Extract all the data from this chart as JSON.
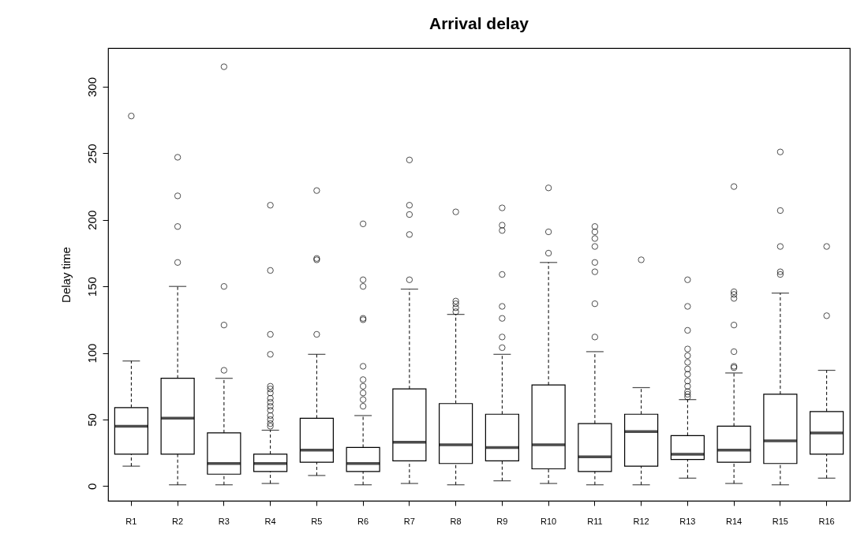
{
  "chart_data": {
    "type": "box",
    "title": "Arrival delay",
    "ylabel": "Delay time",
    "categories": [
      "R1",
      "R2",
      "R3",
      "R4",
      "R5",
      "R6",
      "R7",
      "R8",
      "R9",
      "R10",
      "R11",
      "R12",
      "R13",
      "R14",
      "R15",
      "R16"
    ],
    "boxes": [
      {
        "low": 15,
        "q1": 24,
        "median": 45,
        "q3": 59,
        "high": 94,
        "outliers": [
          278
        ]
      },
      {
        "low": 1,
        "q1": 24,
        "median": 51,
        "q3": 81,
        "high": 150,
        "outliers": [
          168,
          195,
          218,
          247
        ]
      },
      {
        "low": 1,
        "q1": 9,
        "median": 17,
        "q3": 40,
        "high": 81,
        "outliers": [
          87,
          121,
          150,
          315
        ]
      },
      {
        "low": 2,
        "q1": 11,
        "median": 17,
        "q3": 24,
        "high": 42,
        "outliers": [
          45,
          47,
          50,
          53,
          57,
          60,
          63,
          66,
          70,
          73,
          75,
          99,
          114,
          162,
          211
        ]
      },
      {
        "low": 8,
        "q1": 18,
        "median": 27,
        "q3": 51,
        "high": 99,
        "outliers": [
          114,
          170,
          171,
          222
        ]
      },
      {
        "low": 1,
        "q1": 11,
        "median": 17,
        "q3": 29,
        "high": 53,
        "outliers": [
          60,
          65,
          70,
          75,
          80,
          90,
          125,
          126,
          150,
          155,
          197
        ]
      },
      {
        "low": 2,
        "q1": 19,
        "median": 33,
        "q3": 73,
        "high": 148,
        "outliers": [
          155,
          189,
          204,
          211,
          245
        ]
      },
      {
        "low": 1,
        "q1": 17,
        "median": 31,
        "q3": 62,
        "high": 129,
        "outliers": [
          131,
          134,
          137,
          139,
          206
        ]
      },
      {
        "low": 4,
        "q1": 19,
        "median": 29,
        "q3": 54,
        "high": 99,
        "outliers": [
          104,
          112,
          126,
          135,
          159,
          192,
          196,
          209
        ]
      },
      {
        "low": 2,
        "q1": 13,
        "median": 31,
        "q3": 76,
        "high": 168,
        "outliers": [
          175,
          191,
          224
        ]
      },
      {
        "low": 1,
        "q1": 11,
        "median": 22,
        "q3": 47,
        "high": 101,
        "outliers": [
          112,
          137,
          161,
          168,
          180,
          186,
          191,
          195
        ]
      },
      {
        "low": 1,
        "q1": 15,
        "median": 41,
        "q3": 54,
        "high": 74,
        "outliers": [
          170
        ]
      },
      {
        "low": 6,
        "q1": 20,
        "median": 24,
        "q3": 38,
        "high": 65,
        "outliers": [
          67,
          69,
          71,
          75,
          79,
          84,
          88,
          93,
          98,
          103,
          117,
          135,
          155
        ]
      },
      {
        "low": 2,
        "q1": 18,
        "median": 27,
        "q3": 45,
        "high": 85,
        "outliers": [
          89,
          90,
          101,
          121,
          141,
          144,
          146,
          225
        ]
      },
      {
        "low": 1,
        "q1": 17,
        "median": 34,
        "q3": 69,
        "high": 145,
        "outliers": [
          159,
          161,
          180,
          207,
          251
        ]
      },
      {
        "low": 6,
        "q1": 24,
        "median": 40,
        "q3": 56,
        "high": 87,
        "outliers": [
          128,
          180
        ]
      }
    ],
    "ylim": [
      -11,
      329
    ],
    "yticks": [
      0,
      50,
      100,
      150,
      200,
      250,
      300
    ],
    "marker": "circle"
  }
}
